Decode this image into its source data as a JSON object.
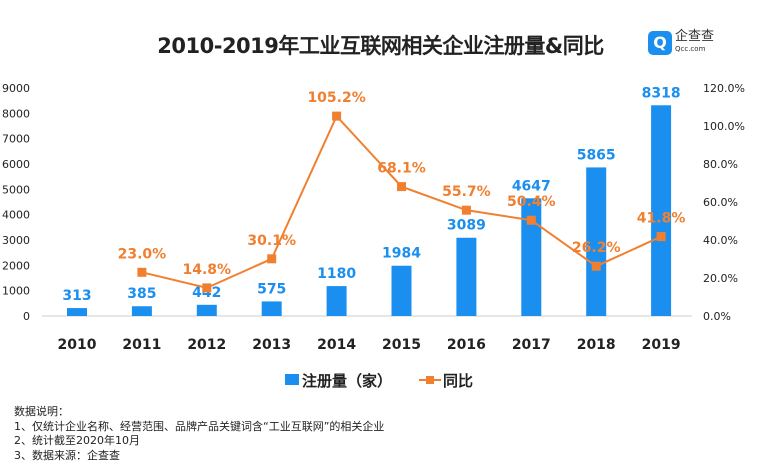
{
  "logo": {
    "name": "企查查",
    "domain": "Qcc.com"
  },
  "chart_data": {
    "type": "bar+line",
    "title": "2010-2019年工业互联网相关企业注册量&同比",
    "categories": [
      "2010",
      "2011",
      "2012",
      "2013",
      "2014",
      "2015",
      "2016",
      "2017",
      "2018",
      "2019"
    ],
    "series": [
      {
        "name": "注册量（家）",
        "type": "bar",
        "axis": "left",
        "color": "#1a8ff0",
        "label_color": "#1a8ff0",
        "values": [
          313,
          385,
          442,
          575,
          1180,
          1984,
          3089,
          4647,
          5865,
          8318
        ]
      },
      {
        "name": "同比",
        "type": "line",
        "axis": "right",
        "color": "#f08030",
        "label_color": "#f08030",
        "values": [
          null,
          23.0,
          14.8,
          30.1,
          105.2,
          68.1,
          55.7,
          50.4,
          26.2,
          41.8
        ]
      }
    ],
    "left_axis": {
      "ylim": [
        0,
        9000
      ],
      "ticks": [
        "0",
        "1000",
        "2000",
        "3000",
        "4000",
        "5000",
        "6000",
        "7000",
        "8000",
        "9000"
      ]
    },
    "right_axis": {
      "ylim": [
        0,
        120
      ],
      "ticks": [
        "0.0%",
        "20.0%",
        "40.0%",
        "60.0%",
        "80.0%",
        "100.0%",
        "120.0%"
      ]
    },
    "grid": false,
    "legend": "bottom-center"
  },
  "notes": {
    "heading": "数据说明：",
    "lines": [
      "1、仅统计企业名称、经营范围、品牌产品关键词含“工业互联网”的相关企业",
      "2、统计截至2020年10月",
      "3、数据来源：企查查"
    ]
  }
}
